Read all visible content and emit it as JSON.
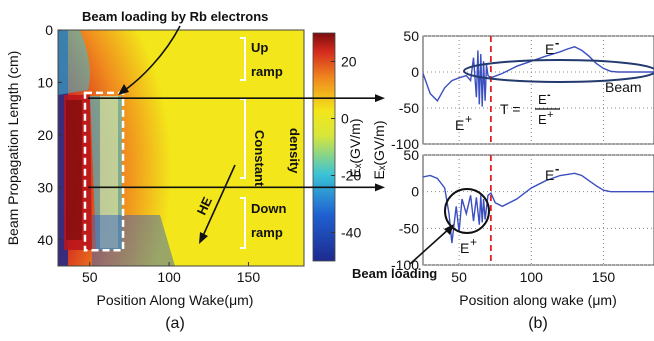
{
  "chart_data": [
    {
      "panel_label": "(a)",
      "type": "heatmap",
      "xlabel": "Position Along Wake(μm)",
      "ylabel": "Beam Propagation Length (cm)",
      "xlim": [
        30,
        185
      ],
      "ylim": [
        0,
        45
      ],
      "xticks": [
        "50",
        "100",
        "150"
      ],
      "yticks": [
        "0",
        "10",
        "20",
        "30",
        "40"
      ],
      "colorbar": {
        "label": "Eₓ(GV/m)",
        "range": [
          -50,
          30
        ],
        "ticks": [
          "20",
          "0",
          "-20",
          "-40"
        ],
        "tick_values": [
          20,
          0,
          -20,
          -40
        ]
      },
      "annotations": {
        "top_title": "Beam loading by Rb electrons",
        "he": "HE",
        "up_ramp": [
          "Up",
          "ramp"
        ],
        "constant_density": [
          "Constant",
          "density"
        ],
        "down_ramp": [
          "Down",
          "ramp"
        ]
      },
      "region_cm": {
        "up_ramp": [
          0,
          11
        ],
        "constant": [
          11,
          31
        ],
        "down_ramp": [
          31,
          42
        ]
      },
      "beam_loading_box": {
        "x": [
          47,
          71
        ],
        "y": [
          12,
          42
        ]
      },
      "cut_lines_cm": [
        13,
        30
      ],
      "colors": {
        "blue": "#1e2a8e",
        "cyan": "#3ac3d6",
        "yellow": "#f3e61a",
        "orange": "#f08a1e",
        "red": "#d42a1e",
        "darkred": "#7a0d0d"
      }
    },
    {
      "panel_label": "(b)",
      "type": "line",
      "xlabel": "Position along wake (μm)",
      "ylabel": "Eₓ(GV/m)",
      "xlim": [
        25,
        185
      ],
      "xticks": [
        "50",
        "100",
        "150"
      ],
      "dashed_line_x": 72,
      "panels": [
        {
          "name": "top",
          "ylim": [
            -100,
            50
          ],
          "yticks": [
            "50",
            "0",
            "-50",
            "-100"
          ],
          "series": [
            {
              "x": [
                25,
                30,
                35,
                40,
                45,
                50,
                55,
                58,
                60,
                62,
                63,
                64,
                65,
                66,
                67,
                68,
                69,
                70,
                72,
                80,
                90,
                100,
                110,
                120,
                125,
                130,
                135,
                140,
                145,
                150,
                155,
                160,
                170,
                185
              ],
              "y": [
                -2,
                -30,
                -40,
                -22,
                -12,
                -8,
                -5,
                -12,
                20,
                -35,
                30,
                -45,
                25,
                -48,
                15,
                -40,
                10,
                -5,
                -8,
                -2,
                8,
                15,
                22,
                28,
                32,
                35,
                30,
                22,
                12,
                5,
                1,
                0,
                0,
                0
              ]
            }
          ],
          "labels": {
            "e_minus": "E",
            "e_plus": "E",
            "beam": "Beam",
            "t_eq": "T ="
          }
        },
        {
          "name": "bottom",
          "ylim": [
            -100,
            50
          ],
          "yticks": [
            "50",
            "0",
            "-50",
            "-100"
          ],
          "series": [
            {
              "x": [
                25,
                30,
                35,
                40,
                43,
                45,
                48,
                50,
                52,
                55,
                58,
                60,
                62,
                64,
                65,
                66,
                67,
                68,
                70,
                72,
                75,
                80,
                90,
                100,
                110,
                120,
                130,
                135,
                140,
                145,
                150,
                155,
                160,
                170,
                185
              ],
              "y": [
                20,
                22,
                18,
                5,
                -30,
                -70,
                -20,
                -55,
                -10,
                -30,
                -5,
                -40,
                -8,
                -45,
                -5,
                -42,
                -10,
                -38,
                -5,
                -2,
                -15,
                -20,
                -10,
                5,
                15,
                22,
                25,
                22,
                15,
                8,
                2,
                0,
                0,
                0,
                0
              ]
            }
          ],
          "labels": {
            "e_minus": "E",
            "e_plus": "E"
          }
        }
      ],
      "annotations": {
        "beam_loading": "Beam loading"
      }
    }
  ]
}
